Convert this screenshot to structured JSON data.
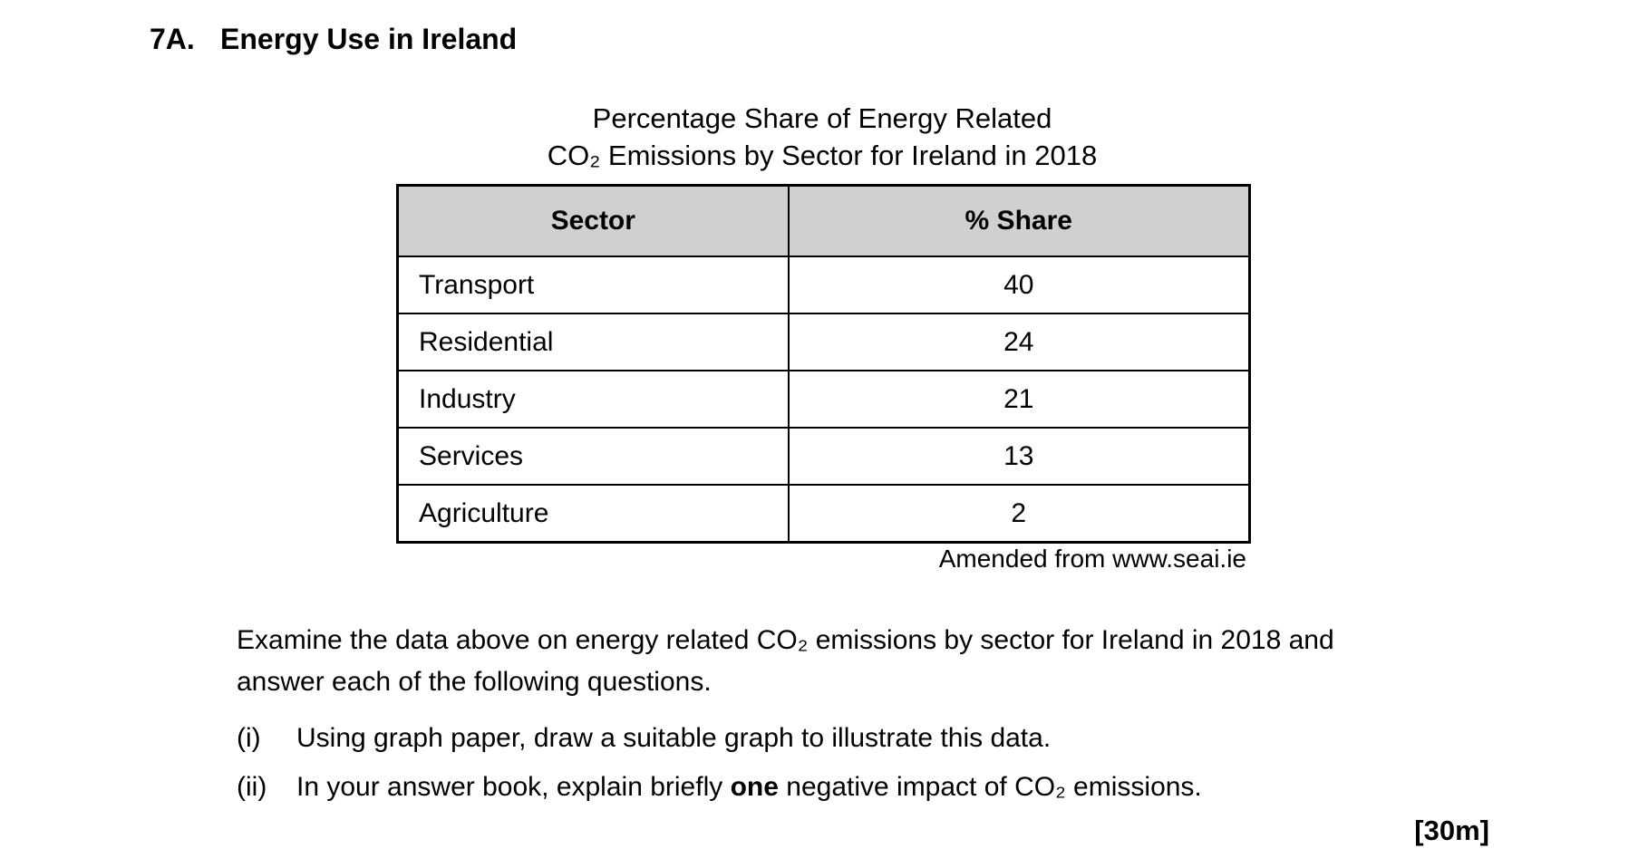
{
  "question": {
    "number": "7A.",
    "title": "Energy Use in Ireland"
  },
  "table": {
    "title_line1": "Percentage Share of Energy Related",
    "title_line2": "CO₂ Emissions by Sector for Ireland in 2018",
    "columns": {
      "sector": "Sector",
      "share": "% Share"
    },
    "rows": [
      {
        "sector": "Transport",
        "share": "40"
      },
      {
        "sector": "Residential",
        "share": "24"
      },
      {
        "sector": "Industry",
        "share": "21"
      },
      {
        "sector": "Services",
        "share": "13"
      },
      {
        "sector": "Agriculture",
        "share": "2"
      }
    ],
    "source": "Amended from www.seai.ie",
    "header_bg": "#d0d0d0",
    "border_color": "#000000"
  },
  "chart_data": {
    "type": "table",
    "title": "Percentage Share of Energy Related CO₂ Emissions by Sector for Ireland in 2018",
    "categories": [
      "Transport",
      "Residential",
      "Industry",
      "Services",
      "Agriculture"
    ],
    "values": [
      40,
      24,
      21,
      13,
      2
    ],
    "unit": "% share"
  },
  "body": {
    "intro_line1": "Examine the data above on energy related CO₂ emissions by sector for Ireland in 2018 and",
    "intro_line2": "answer each of the following questions.",
    "items": [
      {
        "marker": "(i)",
        "text": "Using graph paper, draw a suitable graph to illustrate this data."
      },
      {
        "marker": "(ii)",
        "text_before": "In your answer book, explain briefly ",
        "bold": "one",
        "text_after": " negative impact of CO₂ emissions."
      }
    ],
    "marks": "[30m]"
  }
}
